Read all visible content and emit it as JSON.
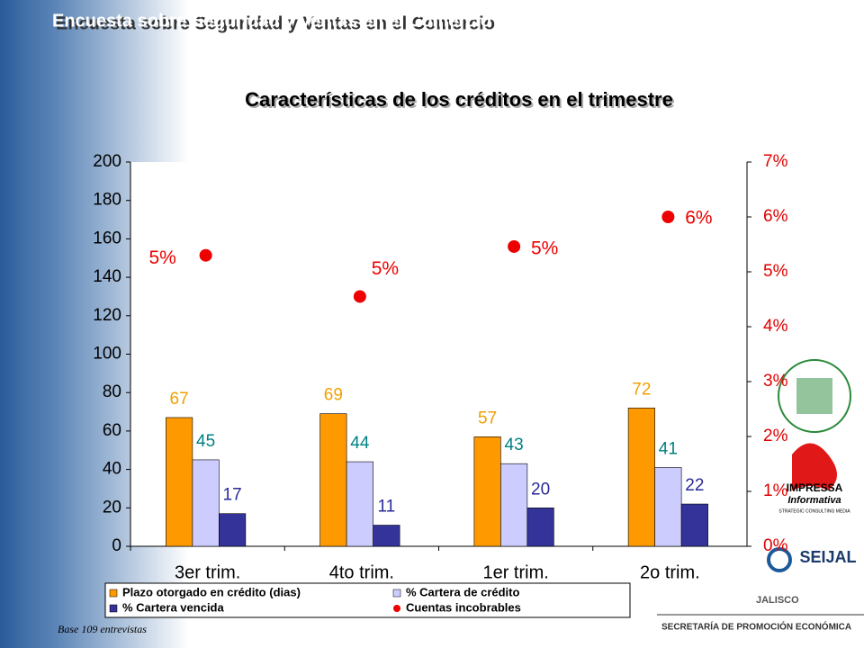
{
  "header": {
    "title": "Encuesta sobre Seguridad y Ventas en el Comercio"
  },
  "chart_data": {
    "type": "bar",
    "title": "Características de los créditos en el trimestre",
    "categories": [
      "3er trim.",
      "4to trim.",
      "1er trim.",
      "2o trim."
    ],
    "ylim": [
      0,
      200
    ],
    "yticks": [
      0,
      20,
      40,
      60,
      80,
      100,
      120,
      140,
      160,
      180,
      200
    ],
    "y2lim": [
      0,
      7
    ],
    "y2ticks": [
      {
        "value": 0,
        "label": "0%"
      },
      {
        "value": 1,
        "label": "1%"
      },
      {
        "value": 2,
        "label": "2%"
      },
      {
        "value": 3,
        "label": "3%"
      },
      {
        "value": 4,
        "label": "4%"
      },
      {
        "value": 5,
        "label": "5%"
      },
      {
        "value": 6,
        "label": "6%"
      },
      {
        "value": 7,
        "label": "7%"
      }
    ],
    "series": [
      {
        "name": "Plazo otorgado en crédito (dias)",
        "color": "#ff9900",
        "label_color": "#f0a000",
        "values": [
          67,
          69,
          57,
          72
        ]
      },
      {
        "name": "% Cartera de crédito",
        "color": "#ccccff",
        "label_color": "#008080",
        "values": [
          45,
          44,
          43,
          41
        ]
      },
      {
        "name": "% Cartera vencida",
        "color": "#333399",
        "label_color": "#2a2a9a",
        "values": [
          17,
          11,
          20,
          22
        ]
      },
      {
        "name": "Cuentas incobrables",
        "type": "scatter",
        "axis": "y2",
        "color": "#ee0000",
        "values": [
          5.3,
          4.55,
          5.46,
          6.0
        ],
        "value_labels": [
          "5%",
          "5%",
          "5%",
          "6%"
        ]
      }
    ]
  },
  "footnote": "Base 109 entrevistas",
  "logos": {
    "impressa": "IMPRESSA",
    "informativa": "Informativa",
    "strategic": "STRATEGIC CONSULTING MEDIA",
    "seijal": "SEIJAL",
    "jalisco": "JALISCO",
    "secretaria": "SECRETARÍA DE PROMOCIÓN ECONÓMICA"
  }
}
